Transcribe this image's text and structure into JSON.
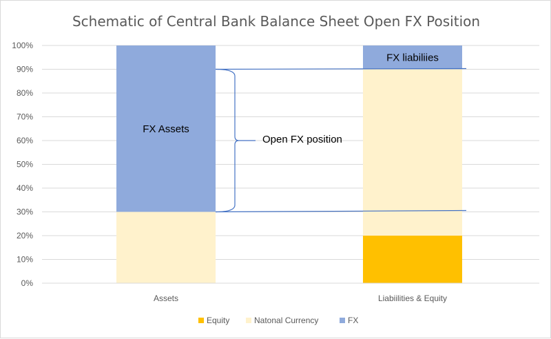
{
  "chart_data": {
    "type": "bar",
    "stacked": true,
    "title": "Schematic of Central Bank Balance Sheet Open FX Position",
    "xlabel": "",
    "ylabel": "",
    "categories": [
      "Assets",
      "Liabiilities & Equity"
    ],
    "ylim": [
      0,
      100
    ],
    "yticks": [
      0,
      10,
      20,
      30,
      40,
      50,
      60,
      70,
      80,
      90,
      100
    ],
    "ytick_labels": [
      "0%",
      "10%",
      "20%",
      "30%",
      "40%",
      "50%",
      "60%",
      "70%",
      "80%",
      "90%",
      "100%"
    ],
    "grid": true,
    "legend_position": "bottom",
    "series": [
      {
        "name": "Equity",
        "values": [
          0,
          20
        ],
        "color": "#ffc000"
      },
      {
        "name": "Natonal Currency",
        "values": [
          30,
          70
        ],
        "color": "#fff2cc"
      },
      {
        "name": "FX",
        "values": [
          70,
          10
        ],
        "color": "#8faadc"
      }
    ],
    "annotations": {
      "fx_assets": "FX Assets",
      "fx_liabilities": "FX liabiliies",
      "open_position": "Open FX position"
    },
    "open_position_range": [
      30,
      90
    ],
    "bracket_color": "#4472c4"
  }
}
